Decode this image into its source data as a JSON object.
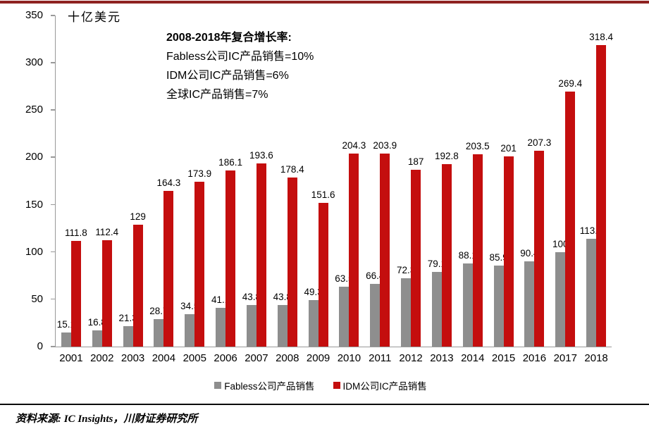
{
  "page": {
    "top_rule_color": "#8E2221",
    "background": "#FFFFFF",
    "axis_color": "#999999"
  },
  "unit_label": "十亿美元",
  "annotation": {
    "title": "2008-2018年复合增长率:",
    "lines": [
      "Fabless公司IC产品销售=10%",
      "IDM公司IC产品销售=6%",
      "全球IC产品销售=7%"
    ]
  },
  "legend": [
    {
      "label": "Fabless公司产品销售",
      "color": "#8E8E8E"
    },
    {
      "label": "IDM公司IC产品销售",
      "color": "#C40E0E"
    }
  ],
  "footer": {
    "source_text": "资料来源: IC Insights，川财证券研究所"
  },
  "chart_data": {
    "type": "bar",
    "title": "",
    "xlabel": "",
    "ylabel": "十亿美元",
    "ylim": [
      0,
      350
    ],
    "yticks": [
      0,
      50,
      100,
      150,
      200,
      250,
      300,
      350
    ],
    "grid": false,
    "legend_position": "bottom",
    "categories": [
      "2001",
      "2002",
      "2003",
      "2004",
      "2005",
      "2006",
      "2007",
      "2008",
      "2009",
      "2010",
      "2011",
      "2012",
      "2013",
      "2014",
      "2015",
      "2016",
      "2017",
      "2018"
    ],
    "series": [
      {
        "name": "Fabless公司产品销售",
        "color": "#8E8E8E",
        "values": [
          15.1,
          16.8,
          21.3,
          28.7,
          34.5,
          41.1,
          43.8,
          43.8,
          49.3,
          63.5,
          66.4,
          72.3,
          79.1,
          88.1,
          85.9,
          90.4,
          100,
          113.9
        ],
        "labels": [
          "15.1",
          "16.8",
          "21.3",
          "28.7",
          "34.5",
          "41.1",
          "43.8",
          "43.8",
          "49.3",
          "63.5",
          "66.4",
          "72.3",
          "79.1",
          "88.1",
          "85.9",
          "90.4",
          "100",
          "113.9"
        ]
      },
      {
        "name": "IDM公司IC产品销售",
        "color": "#C40E0E",
        "values": [
          111.8,
          112.4,
          129,
          164.3,
          173.9,
          186.1,
          193.6,
          178.4,
          151.6,
          204.3,
          203.9,
          187,
          192.8,
          203.5,
          201,
          207.3,
          269.4,
          318.4
        ],
        "labels": [
          "111.8",
          "112.4",
          "129",
          "164.3",
          "173.9",
          "186.1",
          "193.6",
          "178.4",
          "151.6",
          "204.3",
          "203.9",
          "187",
          "192.8",
          "203.5",
          "201",
          "207.3",
          "269.4",
          "318.4"
        ]
      }
    ]
  }
}
